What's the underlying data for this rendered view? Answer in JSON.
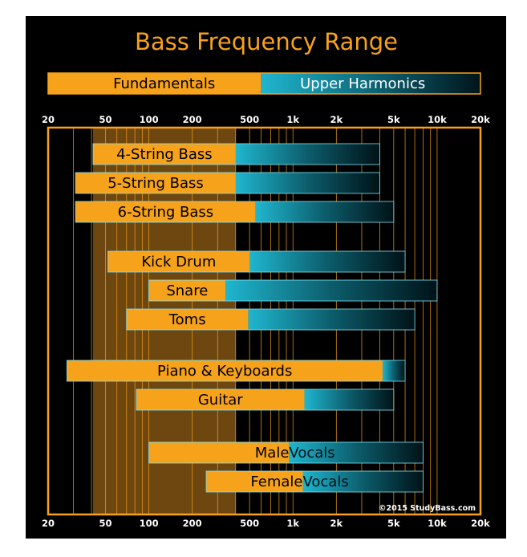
{
  "chart_data": {
    "type": "bar",
    "title": "Bass Frequency Range",
    "x_scale": "log",
    "xlim": [
      20,
      20000
    ],
    "x_ticks": [
      {
        "value": 20,
        "label": "20"
      },
      {
        "value": 50,
        "label": "50"
      },
      {
        "value": 100,
        "label": "100"
      },
      {
        "value": 200,
        "label": "200"
      },
      {
        "value": 500,
        "label": "500"
      },
      {
        "value": 1000,
        "label": "1k"
      },
      {
        "value": 2000,
        "label": "2k"
      },
      {
        "value": 5000,
        "label": "5k"
      },
      {
        "value": 10000,
        "label": "10k"
      },
      {
        "value": 20000,
        "label": "20k"
      }
    ],
    "grid_lines": [
      30,
      40,
      50,
      60,
      70,
      80,
      90,
      100,
      200,
      300,
      400,
      500,
      600,
      700,
      800,
      900,
      1000,
      2000,
      3000,
      4000,
      5000,
      6000,
      7000,
      8000,
      9000,
      10000
    ],
    "legend": {
      "fundamentals_label": "Fundamentals",
      "harmonics_label": "Upper Harmonics",
      "split": 600
    },
    "highlight_range": [
      41,
      400
    ],
    "colors": {
      "fundamentals": "#f7a21b",
      "harmonics": "#1fb6cf",
      "frame": "#f7a21b",
      "highlight": "#6e4610",
      "grid": "#f7a21b",
      "background": "#000000",
      "text": "#ffffff",
      "title": "#f7a21b",
      "bar_text": "#000000"
    },
    "series": [
      {
        "name": "Fundamentals"
      },
      {
        "name": "Upper Harmonics"
      }
    ],
    "bars": [
      {
        "label": "4-String Bass",
        "start": 41,
        "split": 400,
        "end": 4000
      },
      {
        "label": "5-String Bass",
        "start": 31,
        "split": 400,
        "end": 4000
      },
      {
        "label": "6-String Bass",
        "start": 31,
        "split": 550,
        "end": 5000
      },
      {
        "label": "Kick Drum",
        "start": 52,
        "split": 500,
        "end": 6000
      },
      {
        "label": "Snare",
        "start": 100,
        "split": 340,
        "end": 10000
      },
      {
        "label": "Toms",
        "start": 70,
        "split": 490,
        "end": 7000
      },
      {
        "label": "Piano & Keyboards",
        "start": 27,
        "split": 4186,
        "end": 6000
      },
      {
        "label": "Guitar",
        "start": 82,
        "split": 1200,
        "end": 5000
      },
      {
        "label": "Male Vocals",
        "label_fund": "Male ",
        "label_harm": "Vocals",
        "start": 100,
        "split": 940,
        "end": 8000
      },
      {
        "label": "Female Vocals",
        "label_fund": "Female ",
        "label_harm": "Vocals",
        "start": 250,
        "split": 1170,
        "end": 8000
      }
    ],
    "copyright": "©2015 StudyBass.com"
  }
}
